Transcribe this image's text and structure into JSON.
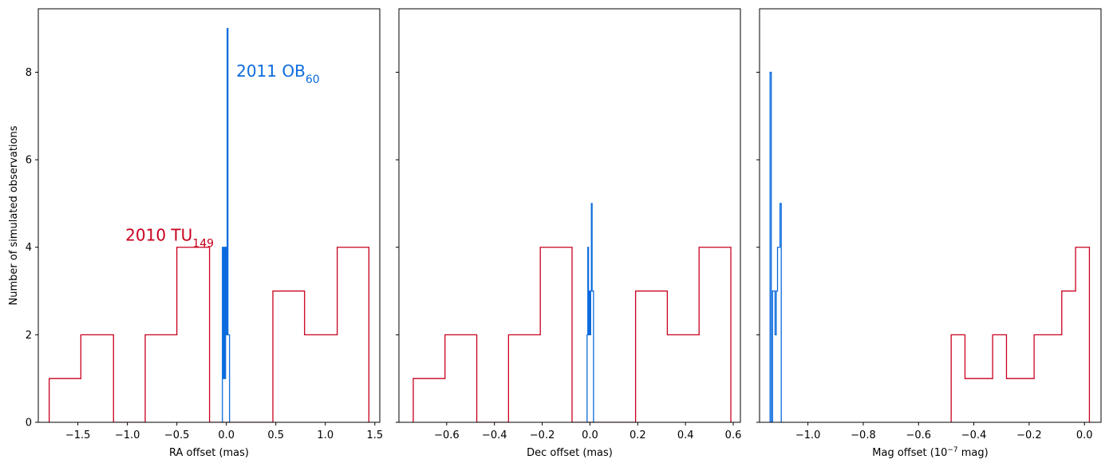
{
  "chart_data": [
    {
      "type": "histogram",
      "xlabel": "RA offset (mas)",
      "ylabel": "Number of simulated observations",
      "xlim": [
        -1.9,
        1.55
      ],
      "ylim": [
        0,
        9.45
      ],
      "xticks": [
        -1.5,
        -1.0,
        -0.5,
        0.0,
        0.5,
        1.0,
        1.5
      ],
      "xtick_labels": [
        "−1.5",
        "−1.0",
        "−0.5",
        "0.0",
        "0.5",
        "1.0",
        "1.5"
      ],
      "yticks": [
        0,
        2,
        4,
        6,
        8
      ],
      "ytick_labels": [
        "0",
        "2",
        "4",
        "6",
        "8"
      ],
      "grid": false,
      "series": [
        {
          "name": "2010 TU149",
          "color": "#c8001e",
          "bin_edges": [
            -1.79,
            -1.47,
            -1.14,
            -0.82,
            -0.5,
            -0.17,
            0.15,
            0.47,
            0.79,
            1.12,
            1.44
          ],
          "counts": [
            1,
            2,
            0,
            2,
            4,
            0,
            0,
            3,
            2,
            4
          ]
        },
        {
          "name": "2011 OB60",
          "color": "#0b6bde",
          "bin_edges": [
            -0.04,
            -0.032,
            -0.024,
            -0.016,
            -0.008,
            0.0,
            0.008,
            0.016,
            0.024,
            0.032,
            0.04
          ],
          "counts": [
            4,
            1,
            4,
            1,
            4,
            2,
            9,
            2,
            2,
            0
          ]
        }
      ],
      "annotations": [
        {
          "main": "2011 OB",
          "sub": "60",
          "x": 0.1,
          "y": 7.9,
          "color": "#0b6bde"
        },
        {
          "main": "2010 TU",
          "sub": "149",
          "x": -1.02,
          "y": 4.15,
          "color": "#c8001e"
        }
      ]
    },
    {
      "type": "histogram",
      "xlabel": "Dec offset (mas)",
      "ylabel": "",
      "xlim": [
        -0.8,
        0.63
      ],
      "ylim": [
        0,
        9.45
      ],
      "xticks": [
        -0.6,
        -0.4,
        -0.2,
        0.0,
        0.2,
        0.4,
        0.6
      ],
      "xtick_labels": [
        "−0.6",
        "−0.4",
        "−0.2",
        "0.0",
        "0.2",
        "0.4",
        "0.6"
      ],
      "yticks": [
        0,
        2,
        4,
        6,
        8
      ],
      "ytick_labels": [
        "",
        "",
        "",
        "",
        ""
      ],
      "grid": false,
      "series": [
        {
          "name": "2010 TU149",
          "color": "#c8001e",
          "bin_edges": [
            -0.74,
            -0.607,
            -0.474,
            -0.341,
            -0.208,
            -0.075,
            0.058,
            0.191,
            0.324,
            0.457,
            0.59
          ],
          "counts": [
            1,
            2,
            0,
            2,
            4,
            0,
            0,
            3,
            2,
            4
          ]
        },
        {
          "name": "2011 OB60",
          "color": "#0b6bde",
          "bin_edges": [
            -0.012,
            -0.009,
            -0.006,
            -0.003,
            0.0,
            0.003,
            0.006,
            0.009,
            0.012,
            0.015,
            0.018
          ],
          "counts": [
            2,
            4,
            2,
            3,
            2,
            3,
            5,
            3,
            3,
            0
          ]
        }
      ],
      "annotations": []
    },
    {
      "type": "histogram",
      "xlabel": "Mag offset (10",
      "xlabel_sup": "−7",
      "xlabel_tail": " mag)",
      "ylabel": "",
      "xlim": [
        -1.175,
        0.06
      ],
      "ylim": [
        0,
        9.45
      ],
      "xticks": [
        -1.0,
        -0.8,
        -0.6,
        -0.4,
        -0.2,
        0.0
      ],
      "xtick_labels": [
        "−1.0",
        "−0.8",
        "−0.6",
        "−0.4",
        "−0.2",
        "0.0"
      ],
      "yticks": [
        0,
        2,
        4,
        6,
        8
      ],
      "ytick_labels": [
        "",
        "",
        "",
        "",
        ""
      ],
      "grid": false,
      "series": [
        {
          "name": "2010 TU149",
          "color": "#c8001e",
          "bin_edges": [
            -0.482,
            -0.432,
            -0.382,
            -0.332,
            -0.282,
            -0.232,
            -0.182,
            -0.132,
            -0.082,
            -0.032,
            0.018
          ],
          "counts": [
            2,
            1,
            1,
            2,
            1,
            1,
            2,
            2,
            3,
            4
          ]
        },
        {
          "name": "2011 OB60",
          "color": "#0b6bde",
          "bin_edges": [
            -1.137,
            -1.1325,
            -1.128,
            -1.1235,
            -1.119,
            -1.1145,
            -1.11,
            -1.1055,
            -1.101,
            -1.0965,
            -1.092
          ],
          "counts": [
            8,
            0,
            3,
            3,
            2,
            3,
            4,
            4,
            5,
            0
          ]
        }
      ],
      "annotations": []
    }
  ]
}
